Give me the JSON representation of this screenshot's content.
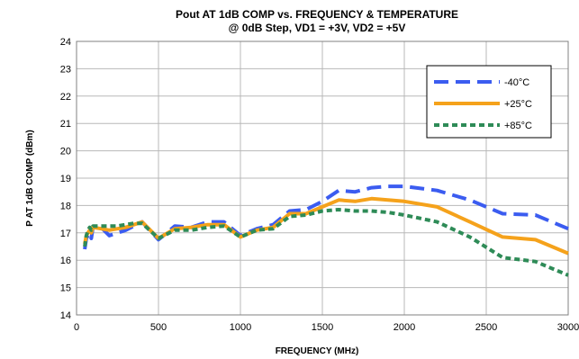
{
  "chart_data": {
    "type": "line",
    "title": "Pout AT 1dB COMP vs. FREQUENCY & TEMPERATURE",
    "subtitle": "@ 0dB Step, VD1 = +3V, VD2 = +5V",
    "xlabel": "FREQUENCY (MHz)",
    "ylabel": "P AT 1dB COMP (dBm)",
    "xlim": [
      0,
      3000
    ],
    "ylim": [
      14,
      24
    ],
    "xticks": [
      0,
      500,
      1000,
      1500,
      2000,
      2500,
      3000
    ],
    "yticks": [
      14,
      15,
      16,
      17,
      18,
      19,
      20,
      21,
      22,
      23,
      24
    ],
    "grid": true,
    "legend_position": "top-right",
    "series": [
      {
        "name": "-40°C",
        "color": "#3b5cf0",
        "style": "dashed",
        "x": [
          50,
          60,
          70,
          80,
          90,
          100,
          150,
          200,
          250,
          300,
          350,
          400,
          500,
          600,
          700,
          800,
          900,
          1000,
          1100,
          1200,
          1300,
          1400,
          1500,
          1600,
          1700,
          1800,
          1900,
          2000,
          2200,
          2400,
          2600,
          2800,
          3000
        ],
        "y": [
          16.4,
          16.8,
          16.9,
          17.0,
          16.8,
          17.2,
          17.2,
          16.9,
          17.0,
          17.1,
          17.25,
          17.4,
          16.75,
          17.25,
          17.2,
          17.4,
          17.4,
          16.9,
          17.15,
          17.3,
          17.8,
          17.85,
          18.15,
          18.55,
          18.5,
          18.65,
          18.7,
          18.7,
          18.55,
          18.2,
          17.7,
          17.65,
          17.15
        ]
      },
      {
        "name": "+25°C",
        "color": "#f5a21b",
        "style": "solid",
        "x": [
          50,
          60,
          70,
          80,
          90,
          100,
          150,
          200,
          250,
          300,
          350,
          400,
          500,
          600,
          700,
          800,
          900,
          1000,
          1100,
          1200,
          1300,
          1400,
          1500,
          1600,
          1700,
          1800,
          1900,
          2000,
          2200,
          2400,
          2600,
          2800,
          3000
        ],
        "y": [
          16.6,
          16.9,
          17.0,
          17.1,
          17.0,
          17.2,
          17.15,
          17.1,
          17.15,
          17.2,
          17.3,
          17.4,
          16.8,
          17.15,
          17.2,
          17.3,
          17.3,
          16.85,
          17.1,
          17.2,
          17.7,
          17.7,
          17.95,
          18.2,
          18.15,
          18.25,
          18.2,
          18.15,
          17.95,
          17.4,
          16.85,
          16.75,
          16.25
        ]
      },
      {
        "name": "+85°C",
        "color": "#2e8b57",
        "style": "dotted",
        "x": [
          50,
          60,
          70,
          80,
          90,
          100,
          150,
          200,
          250,
          300,
          350,
          400,
          500,
          600,
          700,
          800,
          900,
          1000,
          1100,
          1200,
          1300,
          1400,
          1500,
          1600,
          1700,
          1800,
          1900,
          2000,
          2200,
          2400,
          2600,
          2800,
          3000
        ],
        "y": [
          16.5,
          16.9,
          17.1,
          17.2,
          17.1,
          17.25,
          17.25,
          17.25,
          17.25,
          17.3,
          17.35,
          17.35,
          16.8,
          17.1,
          17.1,
          17.2,
          17.25,
          16.85,
          17.1,
          17.15,
          17.6,
          17.65,
          17.8,
          17.85,
          17.8,
          17.8,
          17.75,
          17.65,
          17.4,
          16.85,
          16.1,
          15.95,
          15.45
        ]
      }
    ]
  }
}
